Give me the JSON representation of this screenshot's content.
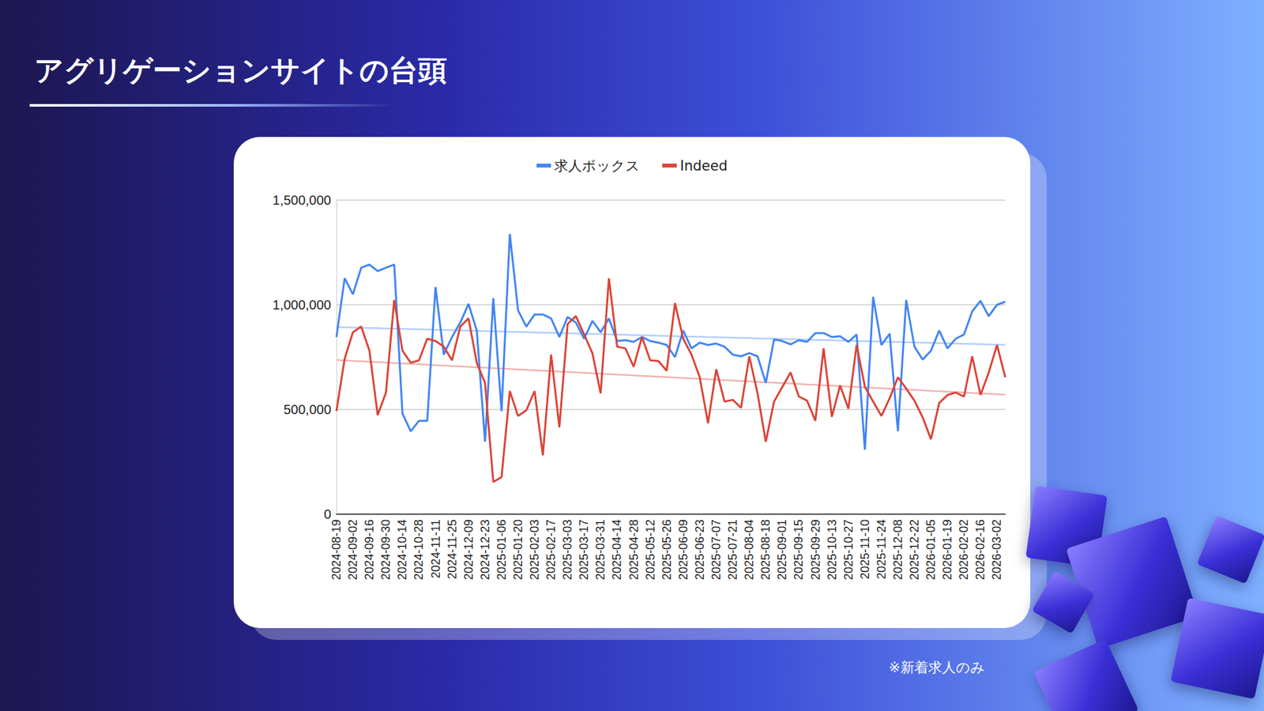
{
  "chart_data": {
    "type": "line",
    "title": "アグリゲーションサイトの台頭",
    "annotations": [
      "※新着求人のみ"
    ],
    "categories": [
      "2024-08-19",
      null,
      "2024-09-02",
      null,
      "2024-09-16",
      null,
      "2024-09-30",
      null,
      "2024-10-14",
      null,
      "2024-10-28",
      null,
      "2024-11-11",
      null,
      "2024-11-25",
      null,
      "2024-12-09",
      null,
      "2024-12-23",
      null,
      "2025-01-06",
      null,
      "2025-01-20",
      null,
      "2025-02-03",
      null,
      "2025-02-17",
      null,
      "2025-03-03",
      null,
      "2025-03-17",
      null,
      "2025-03-31",
      null,
      "2025-04-14",
      null,
      "2025-04-28",
      null,
      "2025-05-12",
      null,
      "2025-05-26",
      null,
      "2025-06-09",
      null,
      "2025-06-23",
      null,
      "2025-07-07",
      null,
      "2025-07-21",
      null,
      "2025-08-04",
      null,
      "2025-08-18",
      null,
      "2025-09-01",
      null,
      "2025-09-15",
      null,
      "2025-09-29",
      null,
      "2025-10-13",
      null,
      "2025-10-27",
      null,
      "2025-11-10",
      null,
      "2025-11-24",
      null,
      "2025-12-08",
      null,
      "2025-12-22",
      null,
      "2026-01-05",
      null,
      "2026-01-19",
      null,
      "2026-02-02",
      null,
      "2026-02-16",
      null,
      "2026-03-02",
      null
    ],
    "series": [
      {
        "name": "求人ボックス",
        "color": "#4285f4",
        "values": [
          846000,
          1127000,
          1050000,
          1177000,
          1192000,
          1161000,
          1177000,
          1192000,
          481000,
          396000,
          446000,
          446000,
          1085000,
          762000,
          846000,
          915000,
          1004000,
          877000,
          346000,
          1031000,
          492000,
          1338000,
          973000,
          896000,
          954000,
          954000,
          935000,
          846000,
          942000,
          915000,
          838000,
          923000,
          869000,
          935000,
          827000,
          831000,
          823000,
          846000,
          827000,
          819000,
          808000,
          750000,
          877000,
          792000,
          819000,
          808000,
          815000,
          800000,
          762000,
          754000,
          769000,
          754000,
          627000,
          835000,
          827000,
          811000,
          831000,
          823000,
          865000,
          865000,
          846000,
          850000,
          823000,
          858000,
          308000,
          1038000,
          808000,
          862000,
          396000,
          1023000,
          800000,
          738000,
          781000,
          877000,
          792000,
          838000,
          858000,
          969000,
          1019000,
          946000,
          1000000,
          1015000
        ]
      },
      {
        "name": "Indeed",
        "color": "#db4437",
        "values": [
          492000,
          742000,
          869000,
          896000,
          781000,
          473000,
          581000,
          1023000,
          781000,
          723000,
          735000,
          838000,
          827000,
          800000,
          735000,
          896000,
          935000,
          723000,
          627000,
          154000,
          177000,
          588000,
          469000,
          496000,
          588000,
          281000,
          762000,
          415000,
          908000,
          946000,
          858000,
          769000,
          577000,
          1127000,
          800000,
          792000,
          704000,
          846000,
          735000,
          731000,
          685000,
          1008000,
          838000,
          762000,
          654000,
          435000,
          692000,
          538000,
          546000,
          508000,
          754000,
          577000,
          346000,
          538000,
          608000,
          677000,
          562000,
          542000,
          446000,
          792000,
          465000,
          615000,
          504000,
          808000,
          608000,
          538000,
          469000,
          554000,
          654000,
          600000,
          542000,
          462000,
          358000,
          531000,
          569000,
          581000,
          562000,
          754000,
          569000,
          677000,
          808000,
          654000
        ]
      }
    ],
    "ylim": [
      0,
      1500000
    ],
    "yticks": [
      {
        "value": 0,
        "label": "0"
      },
      {
        "value": 500000,
        "label": "500,000"
      },
      {
        "value": 1000000,
        "label": "1,000,000"
      },
      {
        "value": 1500000,
        "label": "1,500,000"
      }
    ],
    "grid": true,
    "legend": "top"
  }
}
